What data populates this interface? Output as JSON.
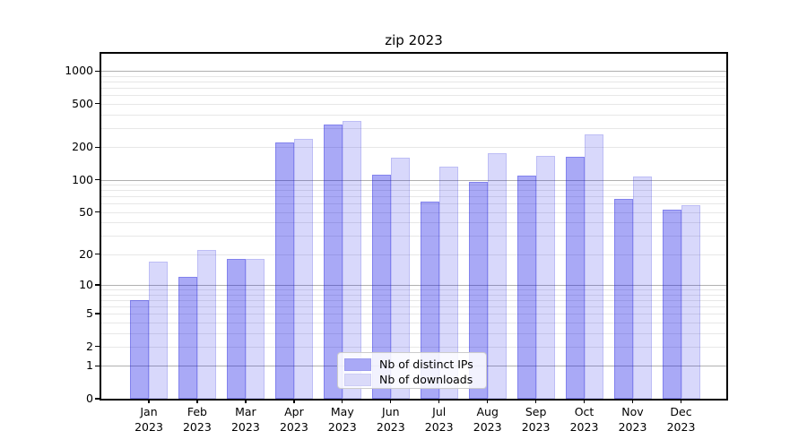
{
  "chart_data": {
    "type": "bar",
    "title": "zip 2023",
    "categories": [
      {
        "month": "Jan",
        "year": "2023"
      },
      {
        "month": "Feb",
        "year": "2023"
      },
      {
        "month": "Mar",
        "year": "2023"
      },
      {
        "month": "Apr",
        "year": "2023"
      },
      {
        "month": "May",
        "year": "2023"
      },
      {
        "month": "Jun",
        "year": "2023"
      },
      {
        "month": "Jul",
        "year": "2023"
      },
      {
        "month": "Aug",
        "year": "2023"
      },
      {
        "month": "Sep",
        "year": "2023"
      },
      {
        "month": "Oct",
        "year": "2023"
      },
      {
        "month": "Nov",
        "year": "2023"
      },
      {
        "month": "Dec",
        "year": "2023"
      }
    ],
    "series": [
      {
        "name": "Nb of distinct IPs",
        "color": "#a9a9f6",
        "values": [
          7,
          12,
          18,
          220,
          320,
          112,
          63,
          95,
          110,
          162,
          67,
          53
        ]
      },
      {
        "name": "Nb of downloads",
        "color": "#dadaf9",
        "values": [
          17,
          22,
          18,
          240,
          350,
          160,
          132,
          175,
          165,
          260,
          107,
          58
        ]
      }
    ],
    "xlabel": "",
    "ylabel": "",
    "yscale": "log1p",
    "ylim": [
      0,
      1437
    ],
    "yticks": [
      0,
      1,
      2,
      5,
      10,
      20,
      50,
      100,
      200,
      500,
      1000
    ],
    "grid": {
      "major_at": [
        1,
        10,
        100,
        1000
      ],
      "minor_per_decade": [
        2,
        3,
        4,
        5,
        6,
        7,
        8,
        9
      ],
      "decades": [
        1,
        10,
        100
      ]
    },
    "legend": {
      "position": "inside-bottom-center"
    }
  }
}
